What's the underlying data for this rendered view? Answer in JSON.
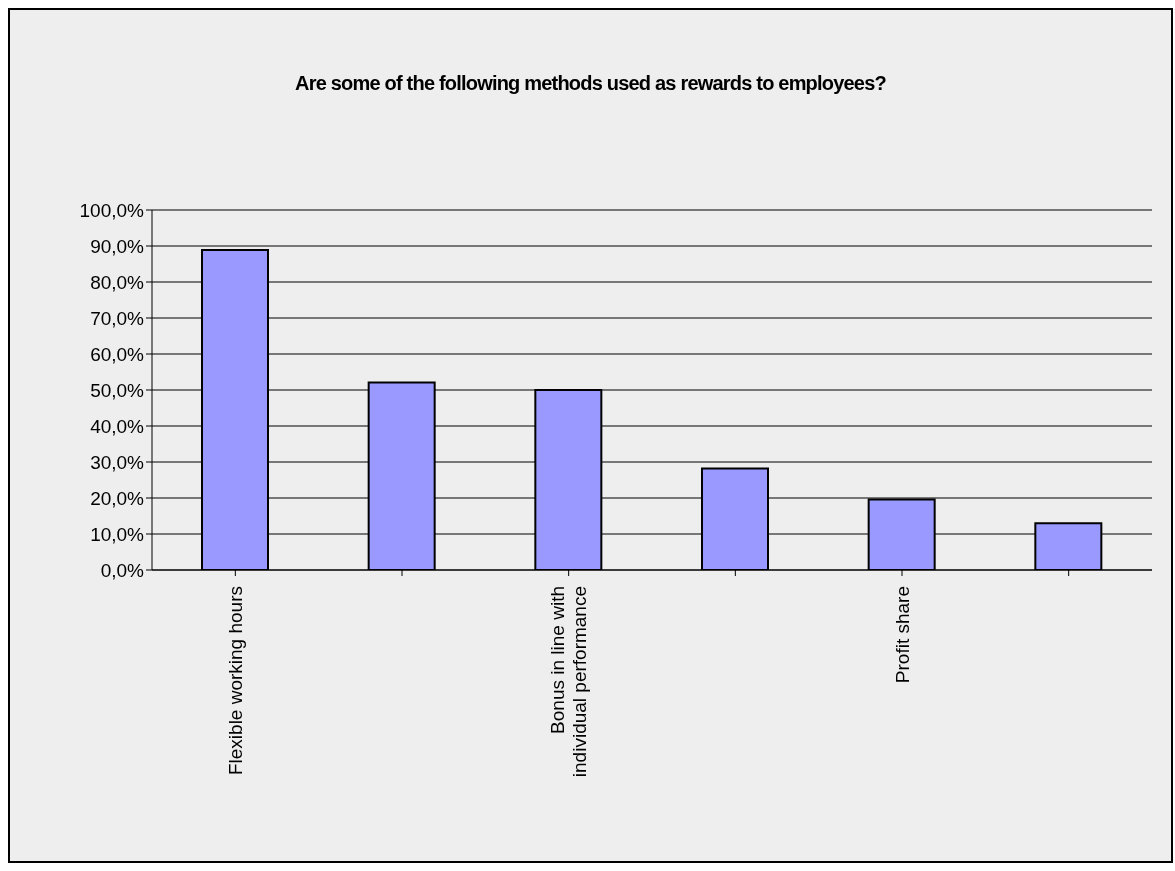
{
  "chart_data": {
    "type": "bar",
    "title": "Are some of the following methods used as rewards to employees?",
    "categories": [
      "Flexible working hours",
      null,
      "Bonus in line with individual performance",
      null,
      "Profit share",
      null
    ],
    "values": [
      88.9,
      52.1,
      50.0,
      28.2,
      19.6,
      13.0
    ],
    "color": "#9999ff",
    "ylim": [
      0,
      100
    ],
    "yticks": [
      {
        "value": 0,
        "label": "0,0%"
      },
      {
        "value": 10,
        "label": "10,0%"
      },
      {
        "value": 20,
        "label": "20,0%"
      },
      {
        "value": 30,
        "label": "30,0%"
      },
      {
        "value": 40,
        "label": "40,0%"
      },
      {
        "value": 50,
        "label": "50,0%"
      },
      {
        "value": 60,
        "label": "60,0%"
      },
      {
        "value": 70,
        "label": "70,0%"
      },
      {
        "value": 80,
        "label": "80,0%"
      },
      {
        "value": 90,
        "label": "90,0%"
      },
      {
        "value": 100,
        "label": "100,0%"
      }
    ],
    "grid": "y",
    "legend": false
  }
}
